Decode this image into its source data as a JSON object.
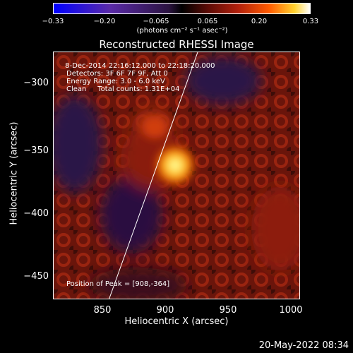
{
  "colorbar": {
    "ticks": [
      "−0.33",
      "−0.20",
      "−0.065",
      "0.065",
      "0.20",
      "0.33"
    ],
    "unit_text": "(photons cm⁻² s⁻¹ asec⁻²)"
  },
  "title": "Reconstructed RHESSI Image",
  "annotations": {
    "line1": " 8-Dec-2014 22:16:12.000 to 22:18:20.000",
    "line2": "Detectors: 3F 6F 7F 9F, Att 0",
    "line3": "Energy Range: 3.0 - 6.0 keV",
    "line4": "Clean     Total counts: 1.31E+04",
    "peak": "Position of Peak = [908,-364]"
  },
  "axes": {
    "xlabel": "Heliocentric X (arcsec)",
    "ylabel": "Heliocentric Y (arcsec)",
    "xticks": [
      "850",
      "900",
      "950",
      "1000"
    ],
    "yticks": [
      "−300",
      "−350",
      "−400",
      "−450"
    ]
  },
  "footer_date": "20-May-2022 08:34"
}
